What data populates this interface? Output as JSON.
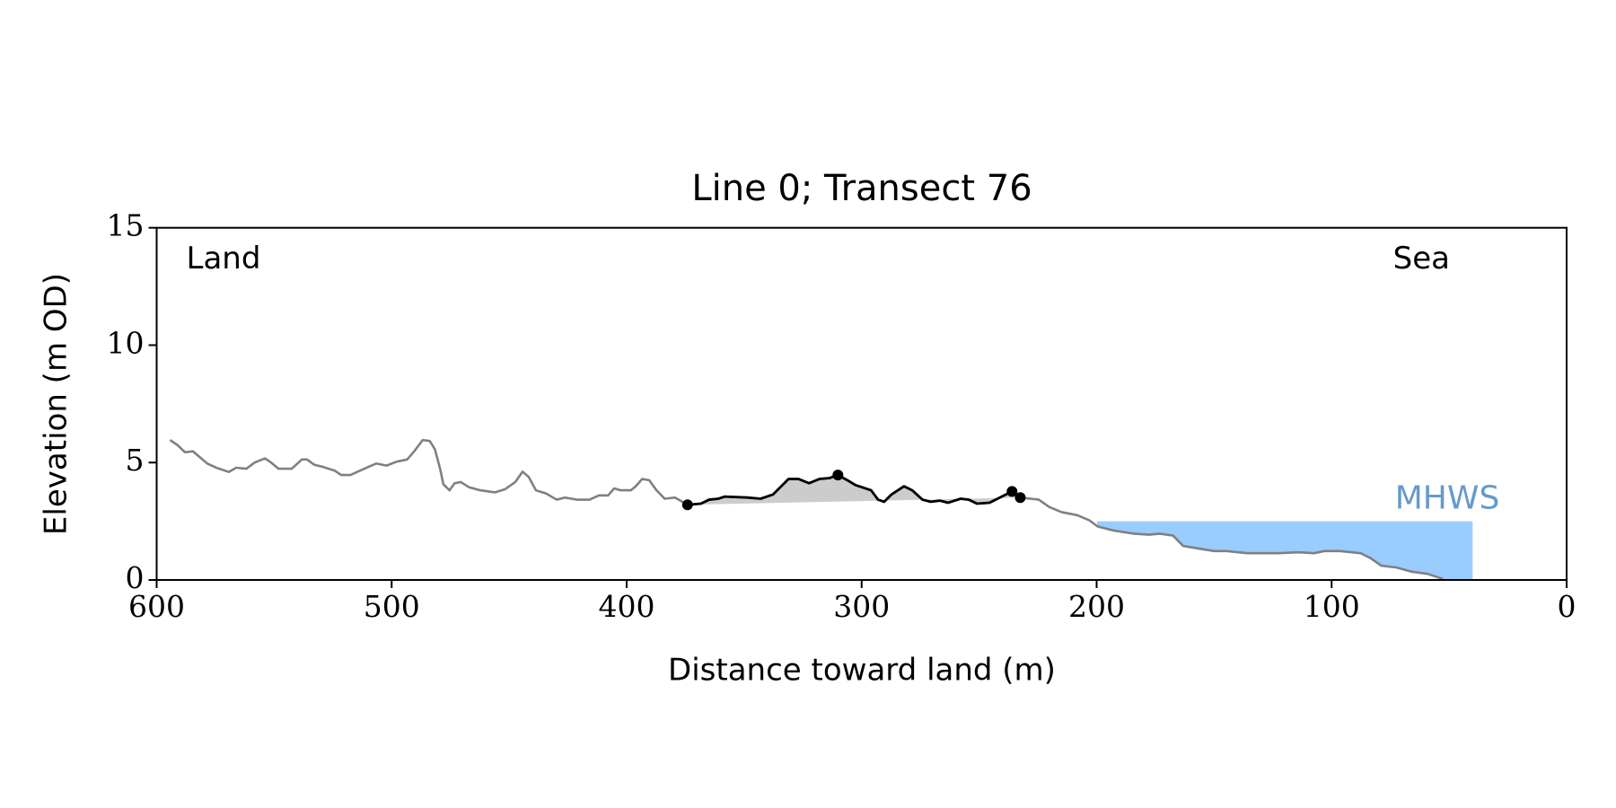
{
  "chart_data": {
    "type": "line",
    "title": "Line 0; Transect 76",
    "xlabel": "Distance toward land (m)",
    "ylabel": "Elevation (m OD)",
    "xlim": [
      600,
      0
    ],
    "ylim": [
      0,
      15
    ],
    "xticks": [
      600,
      500,
      400,
      300,
      200,
      100,
      0
    ],
    "yticks": [
      0,
      5,
      10,
      15
    ],
    "annotations": [
      "Land",
      "Sea"
    ],
    "profile": {
      "color": "#808080",
      "x": [
        594.3,
        591.2,
        588,
        584.6,
        582,
        578.5,
        574.6,
        569.3,
        566.2,
        561.8,
        558.3,
        553.9,
        551.3,
        548.2,
        542.5,
        538.2,
        536,
        533,
        529.4,
        524.1,
        521.5,
        517.5,
        512.7,
        506.6,
        502.2,
        497.8,
        493.4,
        490.4,
        486.8,
        483.8,
        481.6,
        479.4,
        478,
        475.4,
        473.2,
        470.6,
        467.1,
        462.3,
        456.1,
        451.8,
        447.4,
        444.3,
        441.7,
        438.6,
        434.2,
        429.8,
        426.3,
        421.1,
        415.8,
        411.8,
        407.9,
        405.3,
        402.6,
        398.2,
        396.1,
        393.4,
        390.4,
        387.3,
        383.8,
        379.4,
        376.3,
        374.1,
        368.4,
        364.9,
        361,
        358.3,
        348.7,
        343,
        337.7,
        334.6,
        331.1,
        326.8,
        322.4,
        318,
        313.6,
        310.1,
        306.1,
        302.6,
        296,
        293,
        290.4,
        287.3,
        282,
        278.5,
        274.1,
        270.6,
        266.7,
        263.2,
        257.9,
        254.4,
        250.9,
        245.6,
        241.2,
        236,
        232.5,
        228.1,
        224.6,
        220.2,
        214.9,
        208.3,
        203.1,
        199.6,
        193,
        184.2,
        177.6,
        173.2,
        167.5,
        163.2,
        157.9,
        150,
        144.7,
        135.9,
        122.8,
        114,
        107.5,
        103.1,
        96.5,
        87.7,
        83.3,
        78.9,
        72.4,
        65.8,
        59.2,
        52.6
      ],
      "y": [
        5.96,
        5.75,
        5.44,
        5.48,
        5.26,
        4.96,
        4.78,
        4.6,
        4.78,
        4.74,
        5.0,
        5.18,
        5.0,
        4.74,
        4.74,
        5.13,
        5.13,
        4.91,
        4.82,
        4.65,
        4.47,
        4.47,
        4.69,
        4.96,
        4.87,
        5.04,
        5.13,
        5.48,
        5.96,
        5.92,
        5.57,
        4.74,
        4.08,
        3.82,
        4.12,
        4.17,
        3.95,
        3.82,
        3.73,
        3.86,
        4.17,
        4.61,
        4.39,
        3.82,
        3.68,
        3.42,
        3.51,
        3.42,
        3.42,
        3.6,
        3.6,
        3.9,
        3.82,
        3.82,
        3.99,
        4.3,
        4.25,
        3.82,
        3.46,
        3.51,
        3.33,
        3.2,
        3.25,
        3.42,
        3.46,
        3.55,
        3.51,
        3.46,
        3.64,
        3.95,
        4.3,
        4.3,
        4.12,
        4.3,
        4.34,
        4.47,
        4.25,
        4.04,
        3.82,
        3.42,
        3.33,
        3.64,
        3.99,
        3.82,
        3.42,
        3.33,
        3.38,
        3.29,
        3.46,
        3.42,
        3.25,
        3.29,
        3.51,
        3.77,
        3.51,
        3.46,
        3.42,
        3.11,
        2.89,
        2.76,
        2.54,
        2.28,
        2.11,
        1.97,
        1.93,
        1.97,
        1.89,
        1.45,
        1.36,
        1.23,
        1.23,
        1.14,
        1.14,
        1.18,
        1.14,
        1.23,
        1.23,
        1.14,
        0.92,
        0.61,
        0.53,
        0.35,
        0.26,
        0.04
      ]
    },
    "dune": {
      "color": "#000000",
      "fill": "#cccccc",
      "x": [
        374.1,
        368.4,
        364.9,
        361,
        358.3,
        348.7,
        343,
        337.7,
        334.6,
        331.1,
        326.8,
        322.4,
        318,
        313.6,
        310.1,
        306.1,
        302.6,
        296,
        293,
        290.4,
        287.3,
        282,
        278.5,
        274.1,
        270.6,
        266.7,
        263.2,
        257.9,
        254.4,
        250.9,
        245.6,
        241.2,
        236,
        232.5
      ],
      "y": [
        3.2,
        3.25,
        3.42,
        3.46,
        3.55,
        3.51,
        3.46,
        3.64,
        3.95,
        4.3,
        4.3,
        4.12,
        4.3,
        4.34,
        4.47,
        4.25,
        4.04,
        3.82,
        3.42,
        3.33,
        3.64,
        3.99,
        3.82,
        3.42,
        3.33,
        3.38,
        3.29,
        3.46,
        3.42,
        3.25,
        3.29,
        3.51,
        3.77,
        3.51
      ]
    },
    "points": {
      "color": "#000000",
      "x": [
        374.1,
        310.1,
        236,
        232.5
      ],
      "y": [
        3.2,
        4.47,
        3.77,
        3.51
      ]
    },
    "mhws": {
      "label": "MHWS",
      "value": 2.5,
      "x": [
        200,
        40
      ],
      "color": "#99ccff",
      "label_color": "#6699cc"
    }
  }
}
